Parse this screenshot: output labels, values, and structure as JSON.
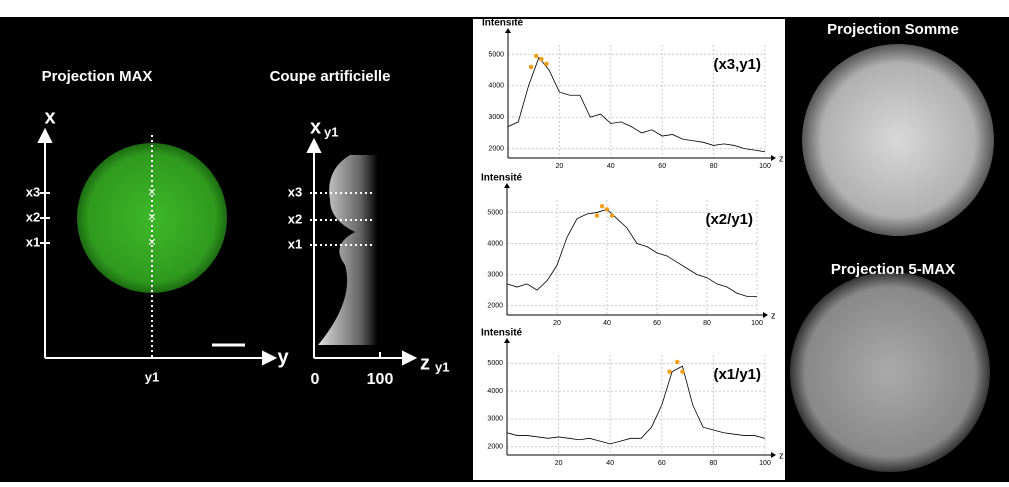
{
  "left_panel": {
    "title_max": "Projection MAX",
    "title_cut": "Coupe artificielle",
    "axis_x": "x",
    "axis_y": "y",
    "y1": "y1",
    "rows": [
      "x3",
      "x2",
      "x1"
    ],
    "cut_axis": "x",
    "cut_axis_sub": "y1",
    "cut_rows": [
      "x3",
      "x2",
      "x1"
    ],
    "z_ticks": [
      0,
      100
    ],
    "z_axis": "z",
    "z_axis_sub": "y1"
  },
  "right_panel": {
    "title_sum": "Projection Somme",
    "title_5max": "Projection 5-MAX"
  },
  "chart_data": [
    {
      "type": "line",
      "y_label": "Intensité",
      "annotation": "(x3,y1)",
      "x_label": "z",
      "color": "#000",
      "x": [
        0,
        4,
        8,
        12,
        16,
        20,
        24,
        28,
        32,
        36,
        40,
        44,
        48,
        52,
        56,
        60,
        64,
        68,
        72,
        76,
        80,
        84,
        88,
        92,
        96,
        100
      ],
      "values": [
        2700,
        2850,
        4000,
        4900,
        4500,
        3800,
        3700,
        3700,
        3000,
        3100,
        2800,
        2850,
        2700,
        2500,
        2600,
        2400,
        2450,
        2300,
        2250,
        2200,
        2100,
        2150,
        2100,
        2000,
        1950,
        1900
      ],
      "highlight": {
        "x": [
          9,
          11,
          13,
          15
        ],
        "values": [
          4600,
          4950,
          4850,
          4700
        ],
        "color": "#f39c12"
      },
      "xlim": [
        0,
        100
      ],
      "xticks": [
        20,
        40,
        60,
        80,
        100
      ],
      "ylim": [
        1700,
        5300
      ],
      "yticks": [
        2000,
        3000,
        4000,
        5000
      ],
      "grid": true
    },
    {
      "type": "line",
      "y_label": "Intensité",
      "annotation": "(x2/y1)",
      "x_label": "z",
      "color": "#000",
      "x": [
        0,
        4,
        8,
        12,
        16,
        20,
        24,
        28,
        32,
        36,
        40,
        44,
        48,
        52,
        56,
        60,
        64,
        68,
        72,
        76,
        80,
        84,
        88,
        92,
        96,
        100
      ],
      "values": [
        2700,
        2600,
        2700,
        2500,
        2800,
        3300,
        4200,
        4800,
        4950,
        5000,
        5100,
        4800,
        4500,
        4000,
        3900,
        3700,
        3600,
        3400,
        3200,
        3000,
        2900,
        2700,
        2600,
        2400,
        2300,
        2300
      ],
      "highlight": {
        "x": [
          36,
          38,
          40,
          42
        ],
        "values": [
          4900,
          5200,
          5100,
          4900
        ],
        "color": "#f39c12"
      },
      "xlim": [
        0,
        100
      ],
      "xticks": [
        20,
        40,
        60,
        80,
        100
      ],
      "ylim": [
        1700,
        5400
      ],
      "yticks": [
        2000,
        3000,
        4000,
        5000
      ],
      "grid": true
    },
    {
      "type": "line",
      "y_label": "Intensité",
      "annotation": "(x1/y1)",
      "x_label": "z",
      "color": "#000",
      "x": [
        0,
        4,
        8,
        12,
        16,
        20,
        24,
        28,
        32,
        36,
        40,
        44,
        48,
        52,
        56,
        60,
        64,
        68,
        72,
        76,
        80,
        84,
        88,
        92,
        96,
        100
      ],
      "values": [
        2500,
        2400,
        2400,
        2350,
        2300,
        2350,
        2300,
        2250,
        2300,
        2200,
        2100,
        2200,
        2300,
        2300,
        2700,
        3500,
        4700,
        4900,
        3500,
        2700,
        2600,
        2500,
        2450,
        2400,
        2400,
        2300
      ],
      "highlight": {
        "x": [
          63,
          66,
          68
        ],
        "values": [
          4700,
          5050,
          4700
        ],
        "color": "#f39c12"
      },
      "xlim": [
        0,
        100
      ],
      "xticks": [
        20,
        40,
        60,
        80,
        100
      ],
      "ylim": [
        1700,
        5300
      ],
      "yticks": [
        2000,
        3000,
        4000,
        5000
      ],
      "grid": true
    }
  ]
}
